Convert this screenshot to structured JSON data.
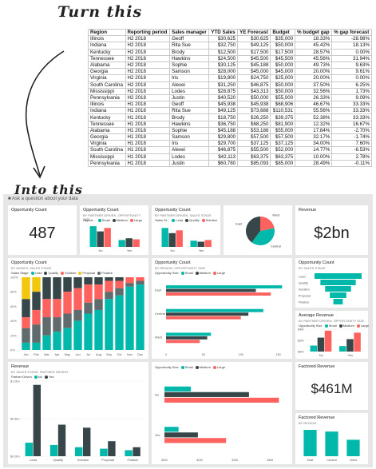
{
  "headings": {
    "before": "Turn this",
    "after": "Into this"
  },
  "spreadsheet": {
    "columns": [
      "Region",
      "Reporting period",
      "Sales manager",
      "YTD Sales",
      "YE Forecast",
      "Budget",
      "% budget gap",
      "% gap forecast"
    ],
    "rows": [
      [
        "Illinois",
        "H2 2018",
        "Geoff",
        "$30,625",
        "$30,625",
        "$35,000",
        "18.33%",
        "-28.98%"
      ],
      [
        "Indiana",
        "H2 2018",
        "Rita Sue",
        "$32,750",
        "$49,125",
        "$50,000",
        "45.42%",
        "18.13%"
      ],
      [
        "Kentucky",
        "H2 2018",
        "Brody",
        "$12,500",
        "$17,500",
        "$17,500",
        "28.57%",
        "0.00%"
      ],
      [
        "Tennessee",
        "H2 2018",
        "Hawkins",
        "$24,500",
        "$45,500",
        "$45,500",
        "45.56%",
        "31.94%"
      ],
      [
        "Alabama",
        "H2 2018",
        "Sophie",
        "$30,125",
        "$45,188",
        "$50,000",
        "49.73%",
        "9.63%"
      ],
      [
        "Georgia",
        "H2 2018",
        "Samson",
        "$28,000",
        "$45,000",
        "$45,000",
        "20.00%",
        "9.61%"
      ],
      [
        "Virginia",
        "H2 2018",
        "Iris",
        "$19,800",
        "$24,750",
        "$25,000",
        "20.00%",
        "0.00%"
      ],
      [
        "South Carolina",
        "H2 2018",
        "Alexei",
        "$31,250",
        "$46,875",
        "$50,000",
        "37.50%",
        "6.25%"
      ],
      [
        "Mississippi",
        "H2 2018",
        "Lodes",
        "$28,875",
        "$43,313",
        "$50,000",
        "32.56%",
        "1.73%"
      ],
      [
        "Pennsylvania",
        "H2 2018",
        "Justin",
        "$40,520",
        "$50,000",
        "$55,000",
        "26.33%",
        "9.09%"
      ],
      [
        "Illinois",
        "H1 2018",
        "Geoff",
        "$45,938",
        "$45,938",
        "$68,906",
        "46.67%",
        "33.33%"
      ],
      [
        "Indiana",
        "H1 2018",
        "Rita Sue",
        "$49,125",
        "$73,688",
        "$110,531",
        "55.56%",
        "33.33%"
      ],
      [
        "Kentucky",
        "H1 2018",
        "Brody",
        "$18,750",
        "$26,250",
        "$39,375",
        "52.38%",
        "33.33%"
      ],
      [
        "Tennessee",
        "H1 2018",
        "Hawkins",
        "$36,750",
        "$68,250",
        "$81,900",
        "12.32%",
        "16.67%"
      ],
      [
        "Alabama",
        "H1 2018",
        "Sophie",
        "$45,188",
        "$53,188",
        "$55,000",
        "17.84%",
        "-2.70%"
      ],
      [
        "Georgia",
        "H1 2018",
        "Samson",
        "$29,800",
        "$57,500",
        "$57,500",
        "32.17%",
        "-1.74%"
      ],
      [
        "Virginia",
        "H1 2018",
        "Iris",
        "$29,700",
        "$37,125",
        "$37,125",
        "34.00%",
        "7.60%"
      ],
      [
        "South Carolina",
        "H1 2018",
        "Alexei",
        "$46,875",
        "$55,500",
        "$52,000",
        "14.77%",
        "-6.53%"
      ],
      [
        "Mississippi",
        "H1 2018",
        "Lodes",
        "$42,113",
        "$63,375",
        "$63,375",
        "10.00%",
        "2.78%"
      ],
      [
        "Pennsylvania",
        "H1 2018",
        "Justin",
        "$60,780",
        "$85,093",
        "$85,000",
        "28.49%",
        "-0.11%"
      ]
    ]
  },
  "dashboard": {
    "qa_placeholder": "Ask a question about your data",
    "colors": {
      "teal": "#01B8AA",
      "dark": "#374649",
      "red": "#FD625E",
      "yellow": "#F2C80F",
      "gray": "#5F6B6D",
      "blue": "#8AD4EB"
    },
    "tiles": {
      "opp_count_kpi": {
        "title": "Opportunity Count",
        "value": "487"
      },
      "opp_by_size": {
        "title": "Opportunity Count",
        "subtitle": "BY PARTNER DRIVEN, OPPORTUNITY SIZE",
        "legend_title": "Opport...",
        "legend": [
          "Small",
          "Medium",
          "Large"
        ]
      },
      "opp_by_stage": {
        "title": "Opportunity Count",
        "subtitle": "BY PARTNER DRIVEN, SALES STAGE",
        "legend_title": "Sales St...",
        "legend": [
          "Lead",
          "Qualify",
          "Solution"
        ]
      },
      "pie": {
        "labels": [
          "West",
          "Central",
          "East"
        ]
      },
      "revenue_kpi": {
        "title": "Revenue",
        "value": "$2bn"
      },
      "opp_by_month": {
        "title": "Opportunity Count",
        "subtitle": "BY MONTH, SALES STAGE",
        "legend_title": "Sales Stage",
        "legend": [
          "Lead",
          "Qualify",
          "Solution",
          "Proposal",
          "Finalize"
        ]
      },
      "opp_by_region": {
        "title": "Opportunity Count",
        "subtitle": "BY REGION, OPPORTUNITY SIZE",
        "legend_title": "Opportunity Size",
        "legend": [
          "Small",
          "Medium",
          "Large"
        ]
      },
      "funnel": {
        "title": "Opportunity Count",
        "subtitle": "BY SALES STAGE",
        "labels": [
          "Lead",
          "Qualify",
          "Solution",
          "Proposal",
          "Finalize"
        ]
      },
      "avg_revenue": {
        "title": "Average Revenue",
        "subtitle": "BY PARTNER DRIVEN, OPPORTUNITY SIZE",
        "legend_title": "Opportunity Size",
        "legend": [
          "Small",
          "Medium",
          "Large"
        ]
      },
      "revenue_stage": {
        "title": "Revenue",
        "subtitle": "BY SALES STAGE, PARTNER DRIVEN",
        "legend_title": "Partner Driven",
        "legend": [
          "No",
          "Yes"
        ]
      },
      "revenue_size": {
        "legend_title": "Opportunity Size",
        "legend": [
          "Small",
          "Medium",
          "Large"
        ]
      },
      "factored_kpi": {
        "title": "Factored Revenue",
        "value": "$461M"
      },
      "factored_region": {
        "title": "Factored Revenue",
        "subtitle": "BY REGION"
      }
    }
  },
  "chart_data": [
    {
      "type": "bar",
      "categories": [
        "No",
        "Yes"
      ],
      "series": [
        {
          "name": "Small",
          "values": [
            60,
            20
          ]
        },
        {
          "name": "Medium",
          "values": [
            45,
            25
          ]
        },
        {
          "name": "Large",
          "values": [
            55,
            22
          ]
        }
      ]
    },
    {
      "type": "bar",
      "categories": [
        "No",
        "Yes"
      ],
      "series": [
        {
          "name": "Lead",
          "values": [
            55,
            18
          ]
        },
        {
          "name": "Qualify",
          "values": [
            40,
            15
          ]
        },
        {
          "name": "Solution",
          "values": [
            48,
            20
          ]
        }
      ]
    },
    {
      "type": "pie",
      "categories": [
        "West",
        "Central",
        "East"
      ],
      "values": [
        22,
        38,
        40
      ]
    },
    {
      "type": "bar",
      "categories": [
        "Jan",
        "Feb",
        "Mar",
        "Apr",
        "May",
        "Jun",
        "Jul",
        "Aug",
        "Sep",
        "Oct",
        "Nov",
        "Dec"
      ],
      "ylim": [
        0,
        100
      ],
      "y_ticks": [
        "100%",
        "80%",
        "60%",
        "40%",
        "20%",
        "0%"
      ],
      "series": [
        {
          "name": "Lead",
          "values": [
            30,
            20,
            0,
            0,
            0,
            0,
            0,
            0,
            0,
            0,
            0,
            0
          ]
        },
        {
          "name": "Qualify",
          "values": [
            25,
            25,
            30,
            30,
            20,
            15,
            10,
            10,
            5,
            5,
            0,
            0
          ]
        },
        {
          "name": "Solution",
          "values": [
            15,
            20,
            25,
            25,
            30,
            30,
            25,
            20,
            15,
            10,
            8,
            5
          ]
        },
        {
          "name": "Proposal",
          "values": [
            20,
            25,
            25,
            20,
            20,
            15,
            15,
            15,
            10,
            10,
            5,
            5
          ]
        },
        {
          "name": "Finalize",
          "values": [
            10,
            10,
            20,
            25,
            30,
            40,
            50,
            55,
            70,
            75,
            87,
            90
          ]
        }
      ]
    },
    {
      "type": "bar",
      "categories": [
        "East",
        "Central",
        "West"
      ],
      "x_ticks": [
        "0",
        "50",
        "100",
        "150"
      ],
      "xlim": [
        0,
        150
      ],
      "series": [
        {
          "name": "Small",
          "values": [
            155,
            130,
            60
          ]
        },
        {
          "name": "Medium",
          "values": [
            120,
            110,
            55
          ]
        },
        {
          "name": "Large",
          "values": [
            140,
            100,
            45
          ]
        }
      ]
    },
    {
      "type": "bar",
      "categories": [
        "Lead",
        "Qualify",
        "Solution",
        "Proposal",
        "Finalize"
      ],
      "values": [
        100,
        75,
        55,
        35,
        20
      ]
    },
    {
      "type": "bar",
      "categories": [
        "No",
        "Yes"
      ],
      "y_ticks": [
        "$4M",
        "$2M",
        "$0M"
      ],
      "series": [
        {
          "name": "Small",
          "values": [
            1.2,
            1.1
          ]
        },
        {
          "name": "Medium",
          "values": [
            2.8,
            2.5
          ]
        },
        {
          "name": "Large",
          "values": [
            4.2,
            3.8
          ]
        }
      ]
    },
    {
      "type": "bar",
      "categories": [
        "Lead",
        "Qualify",
        "Solution",
        "Proposal",
        "Finalize"
      ],
      "y_ticks": [
        "$1.0bn",
        "$0.5bn",
        "$0.0bn"
      ],
      "series": [
        {
          "name": "No",
          "values": [
            0.18,
            0.15,
            0.12,
            0.1,
            0.08
          ]
        },
        {
          "name": "Yes",
          "values": [
            0.95,
            0.42,
            0.38,
            0.2,
            0.12
          ]
        }
      ]
    },
    {
      "type": "bar",
      "categories": [
        "No",
        "Yes"
      ],
      "x_ticks": [
        "$0M",
        "$2M",
        "$4M",
        "$6M"
      ],
      "series": [
        {
          "name": "Small",
          "values": [
            1.5,
            0.8
          ]
        },
        {
          "name": "Medium",
          "values": [
            4.8,
            1.9
          ]
        },
        {
          "name": "Large",
          "values": [
            6.5,
            3.5
          ]
        }
      ]
    },
    {
      "type": "bar",
      "categories": [
        "East",
        "Central",
        "West"
      ],
      "values": [
        160,
        150,
        100
      ]
    }
  ]
}
